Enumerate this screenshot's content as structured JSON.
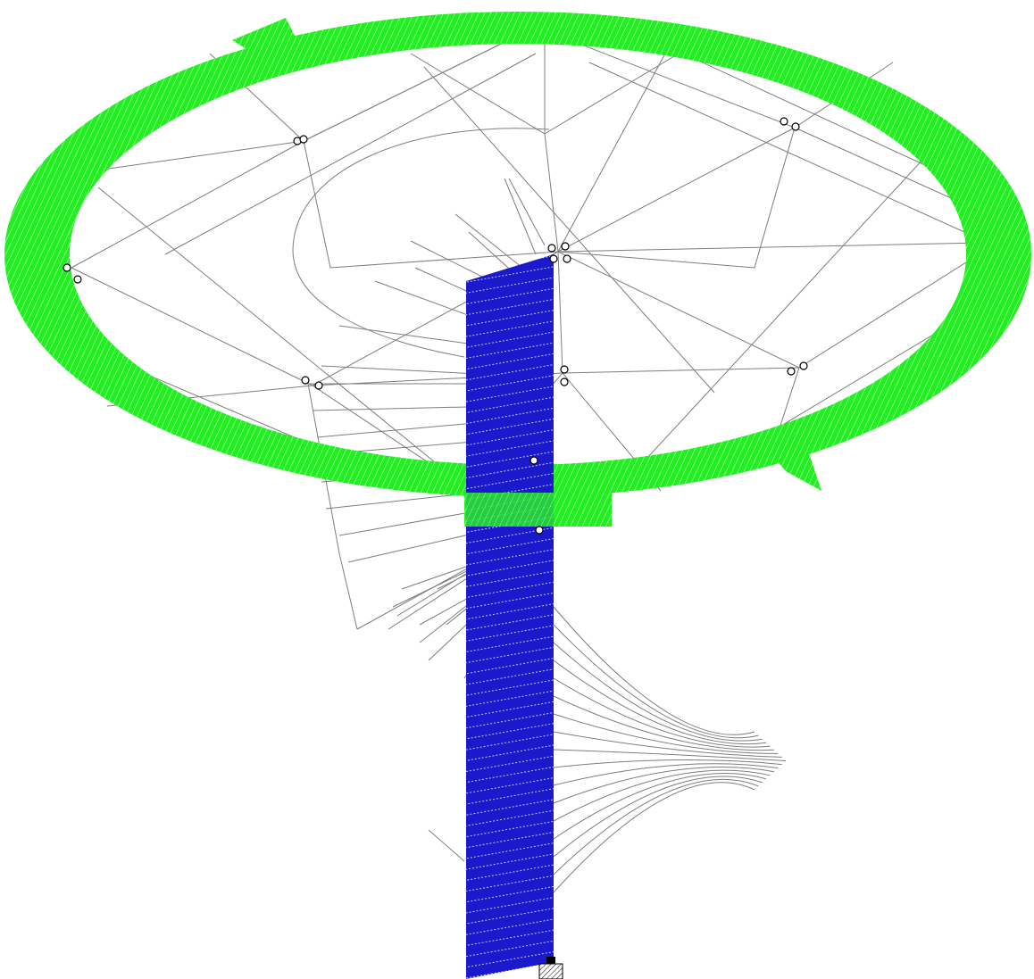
{
  "colors": {
    "background": "#ffffff",
    "ring_fill": "#22ee22",
    "ring_hatch": "#ffffff",
    "mast_fill": "#1a1acc",
    "mast_hatch": "#ffffff",
    "cable_stroke": "#7d7d7d",
    "node_stroke": "#000000",
    "support_fill": "#9a9a9a"
  },
  "icons": {
    "node": "node-circle-icon",
    "support": "fixed-support-icon"
  }
}
